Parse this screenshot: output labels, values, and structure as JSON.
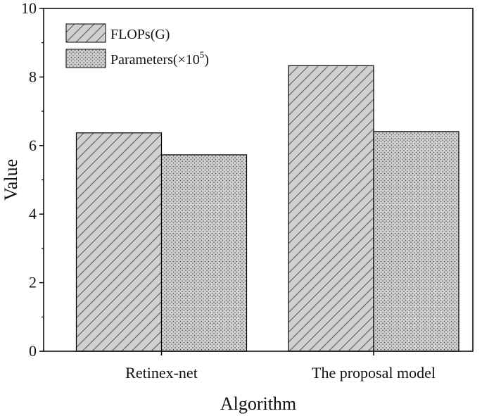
{
  "chart_data": {
    "type": "bar",
    "title": "",
    "xlabel": "Algorithm",
    "ylabel": "Value",
    "ylim": [
      0,
      10
    ],
    "yticks": [
      0,
      2,
      4,
      6,
      8,
      10
    ],
    "categories": [
      "Retinex-net",
      "The proposal model"
    ],
    "series": [
      {
        "name": "FLOPs(G)",
        "pattern": "diagonal-hatch",
        "values": [
          6.37,
          8.33
        ]
      },
      {
        "name": "Parameters(×10⁵)",
        "pattern": "dots",
        "values": [
          5.73,
          6.41
        ]
      }
    ],
    "legend": {
      "placement": "top-left",
      "items": [
        {
          "label": "FLOPs(G)"
        },
        {
          "label_main": "Parameters(×10",
          "label_sup": "5",
          "label_end": ")"
        }
      ]
    },
    "colors": {
      "bar_fill": "#d0d0d0",
      "hatch": "#555555",
      "dots": "#444444",
      "axis": "#000000"
    }
  }
}
